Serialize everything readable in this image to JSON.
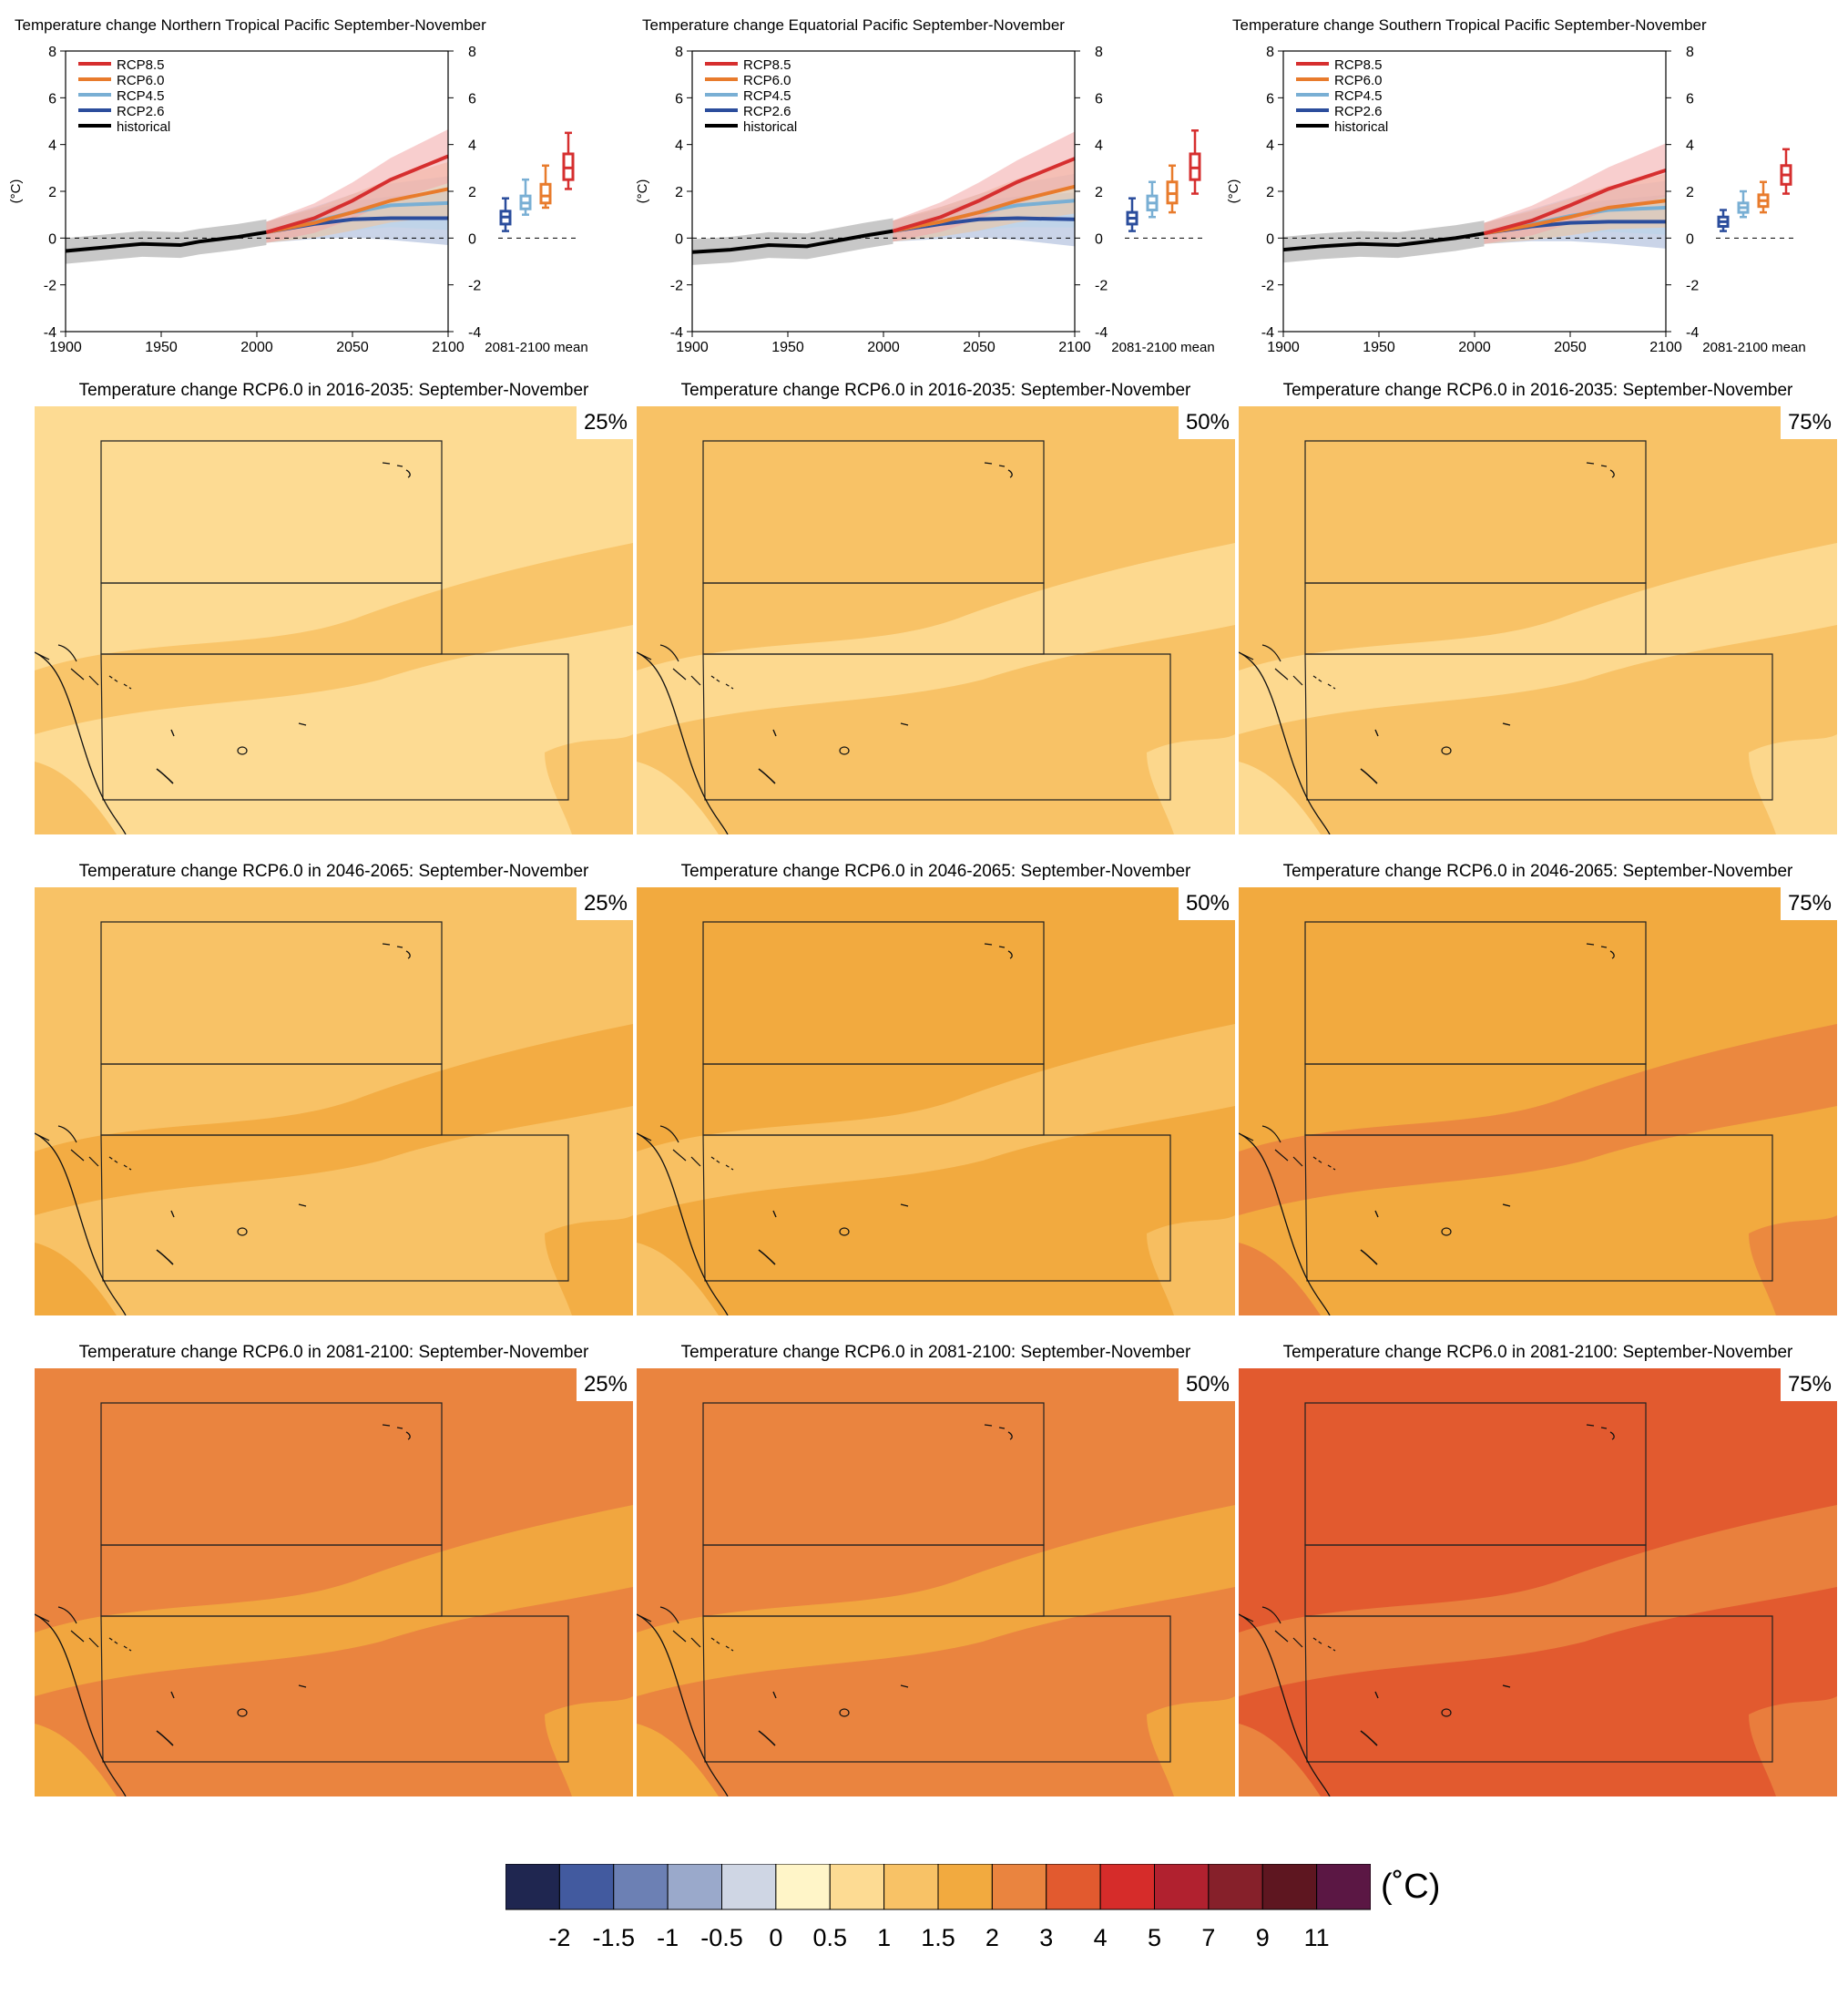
{
  "legend_colors": {
    "RCP8.5": "#d62f2f",
    "RCP6.0": "#e87b2c",
    "RCP4.5": "#79afd4",
    "RCP2.6": "#2b4d9c",
    "historical": "#000000"
  },
  "chart_data": [
    {
      "type": "line",
      "title": "Temperature change Northern Tropical Pacific September-November",
      "ylabel": "(°C)",
      "ylim": [
        -4,
        8
      ],
      "xlim": [
        1900,
        2100
      ],
      "x_ticks": [
        "1900",
        "1950",
        "2000",
        "2050",
        "2100"
      ],
      "y_ticks": [
        "-4",
        "-2",
        "0",
        "2",
        "4",
        "6",
        "8"
      ],
      "box_label": "2081-2100 mean",
      "series": [
        {
          "name": "historical",
          "x": [
            1900,
            1920,
            1940,
            1960,
            1970,
            1980,
            1990,
            2005
          ],
          "y": [
            -0.55,
            -0.4,
            -0.25,
            -0.3,
            -0.15,
            -0.05,
            0.05,
            0.25
          ]
        },
        {
          "name": "RCP2.6",
          "x": [
            2005,
            2030,
            2050,
            2070,
            2100
          ],
          "y": [
            0.25,
            0.6,
            0.8,
            0.85,
            0.85
          ]
        },
        {
          "name": "RCP4.5",
          "x": [
            2005,
            2030,
            2050,
            2070,
            2100
          ],
          "y": [
            0.25,
            0.7,
            1.1,
            1.4,
            1.5
          ]
        },
        {
          "name": "RCP6.0",
          "x": [
            2005,
            2030,
            2050,
            2070,
            2100
          ],
          "y": [
            0.25,
            0.65,
            1.1,
            1.6,
            2.1
          ]
        },
        {
          "name": "RCP8.5",
          "x": [
            2005,
            2030,
            2050,
            2070,
            2100
          ],
          "y": [
            0.25,
            0.85,
            1.6,
            2.5,
            3.5
          ]
        }
      ],
      "boxes": [
        {
          "name": "RCP2.6",
          "min": 0.3,
          "q1": 0.6,
          "median": 0.9,
          "q3": 1.15,
          "max": 1.7
        },
        {
          "name": "RCP4.5",
          "min": 1.0,
          "q1": 1.25,
          "median": 1.5,
          "q3": 1.8,
          "max": 2.5
        },
        {
          "name": "RCP6.0",
          "min": 1.3,
          "q1": 1.5,
          "median": 1.8,
          "q3": 2.3,
          "max": 3.1
        },
        {
          "name": "RCP8.5",
          "min": 2.1,
          "q1": 2.5,
          "median": 3.0,
          "q3": 3.6,
          "max": 4.5
        }
      ]
    },
    {
      "type": "line",
      "title": "Temperature change Equatorial Pacific September-November",
      "ylabel": "(°C)",
      "ylim": [
        -4,
        8
      ],
      "xlim": [
        1900,
        2100
      ],
      "x_ticks": [
        "1900",
        "1950",
        "2000",
        "2050",
        "2100"
      ],
      "y_ticks": [
        "-4",
        "-2",
        "0",
        "2",
        "4",
        "6",
        "8"
      ],
      "box_label": "2081-2100 mean",
      "series": [
        {
          "name": "historical",
          "x": [
            1900,
            1920,
            1940,
            1960,
            1970,
            1980,
            1990,
            2005
          ],
          "y": [
            -0.6,
            -0.5,
            -0.3,
            -0.35,
            -0.2,
            -0.05,
            0.1,
            0.3
          ]
        },
        {
          "name": "RCP2.6",
          "x": [
            2005,
            2030,
            2050,
            2070,
            2100
          ],
          "y": [
            0.3,
            0.6,
            0.8,
            0.85,
            0.8
          ]
        },
        {
          "name": "RCP4.5",
          "x": [
            2005,
            2030,
            2050,
            2070,
            2100
          ],
          "y": [
            0.3,
            0.7,
            1.1,
            1.4,
            1.6
          ]
        },
        {
          "name": "RCP6.0",
          "x": [
            2005,
            2030,
            2050,
            2070,
            2100
          ],
          "y": [
            0.3,
            0.7,
            1.1,
            1.6,
            2.2
          ]
        },
        {
          "name": "RCP8.5",
          "x": [
            2005,
            2030,
            2050,
            2070,
            2100
          ],
          "y": [
            0.3,
            0.9,
            1.6,
            2.4,
            3.4
          ]
        }
      ],
      "boxes": [
        {
          "name": "RCP2.6",
          "min": 0.3,
          "q1": 0.6,
          "median": 0.85,
          "q3": 1.1,
          "max": 1.7
        },
        {
          "name": "RCP4.5",
          "min": 0.9,
          "q1": 1.2,
          "median": 1.5,
          "q3": 1.8,
          "max": 2.4
        },
        {
          "name": "RCP6.0",
          "min": 1.1,
          "q1": 1.5,
          "median": 1.9,
          "q3": 2.4,
          "max": 3.1
        },
        {
          "name": "RCP8.5",
          "min": 1.9,
          "q1": 2.5,
          "median": 3.0,
          "q3": 3.6,
          "max": 4.6
        }
      ]
    },
    {
      "type": "line",
      "title": "Temperature change Southern Tropical Pacific September-November",
      "ylabel": "(°C)",
      "ylim": [
        -4,
        8
      ],
      "xlim": [
        1900,
        2100
      ],
      "x_ticks": [
        "1900",
        "1950",
        "2000",
        "2050",
        "2100"
      ],
      "y_ticks": [
        "-4",
        "-2",
        "0",
        "2",
        "4",
        "6",
        "8"
      ],
      "box_label": "2081-2100 mean",
      "series": [
        {
          "name": "historical",
          "x": [
            1900,
            1920,
            1940,
            1960,
            1970,
            1980,
            1990,
            2005
          ],
          "y": [
            -0.5,
            -0.35,
            -0.25,
            -0.3,
            -0.2,
            -0.1,
            0.0,
            0.2
          ]
        },
        {
          "name": "RCP2.6",
          "x": [
            2005,
            2030,
            2050,
            2070,
            2100
          ],
          "y": [
            0.2,
            0.5,
            0.65,
            0.7,
            0.7
          ]
        },
        {
          "name": "RCP4.5",
          "x": [
            2005,
            2030,
            2050,
            2070,
            2100
          ],
          "y": [
            0.2,
            0.6,
            0.95,
            1.2,
            1.3
          ]
        },
        {
          "name": "RCP6.0",
          "x": [
            2005,
            2030,
            2050,
            2070,
            2100
          ],
          "y": [
            0.2,
            0.55,
            0.9,
            1.3,
            1.6
          ]
        },
        {
          "name": "RCP8.5",
          "x": [
            2005,
            2030,
            2050,
            2070,
            2100
          ],
          "y": [
            0.2,
            0.75,
            1.4,
            2.1,
            2.9
          ]
        }
      ],
      "boxes": [
        {
          "name": "RCP2.6",
          "min": 0.3,
          "q1": 0.5,
          "median": 0.7,
          "q3": 0.9,
          "max": 1.2
        },
        {
          "name": "RCP4.5",
          "min": 0.9,
          "q1": 1.1,
          "median": 1.3,
          "q3": 1.5,
          "max": 2.0
        },
        {
          "name": "RCP6.0",
          "min": 1.1,
          "q1": 1.35,
          "median": 1.6,
          "q3": 1.85,
          "max": 2.4
        },
        {
          "name": "RCP8.5",
          "min": 1.9,
          "q1": 2.3,
          "median": 2.7,
          "q3": 3.1,
          "max": 3.8
        }
      ]
    },
    {
      "type": "heatmap",
      "colorbar_labels": [
        "-2",
        "-1.5",
        "-1",
        "-0.5",
        "0",
        "0.5",
        "1",
        "1.5",
        "2",
        "3",
        "4",
        "5",
        "7",
        "9",
        "11"
      ],
      "colorbar_colors": [
        "#1f2650",
        "#425a9f",
        "#6c80b4",
        "#9aa9cb",
        "#cfd6e4",
        "#fff5c8",
        "#fddb93",
        "#f8c266",
        "#f2aa3f",
        "#ea843f",
        "#e25a2f",
        "#d62c2a",
        "#b1212f",
        "#86202a",
        "#5e1620",
        "#5b1744"
      ],
      "unit": "(˚C)",
      "panels": [
        {
          "title": "Temperature change RCP6.0 in 2016-2035: September-November",
          "percentile": "25%",
          "base_level": 0.5,
          "warm_level": 1.0
        },
        {
          "title": "Temperature change RCP6.0 in 2016-2035: September-November",
          "percentile": "50%",
          "base_level": 1.0,
          "warm_level": 0.5
        },
        {
          "title": "Temperature change RCP6.0 in 2016-2035: September-November",
          "percentile": "75%",
          "base_level": 1.0,
          "warm_level": 0.5
        },
        {
          "title": "Temperature change RCP6.0 in 2046-2065: September-November",
          "percentile": "25%",
          "base_level": 1.0,
          "warm_level": 1.5
        },
        {
          "title": "Temperature change RCP6.0 in 2046-2065: September-November",
          "percentile": "50%",
          "base_level": 1.5,
          "warm_level": 1.0
        },
        {
          "title": "Temperature change RCP6.0 in 2046-2065: September-November",
          "percentile": "75%",
          "base_level": 1.5,
          "warm_level": 2.0
        },
        {
          "title": "Temperature change RCP6.0 in 2081-2100: September-November",
          "percentile": "25%",
          "base_level": 2.0,
          "warm_level": 1.5
        },
        {
          "title": "Temperature change RCP6.0 in 2081-2100: September-November",
          "percentile": "50%",
          "base_level": 2.0,
          "warm_level": 1.5
        },
        {
          "title": "Temperature change RCP6.0 in 2081-2100: September-November",
          "percentile": "75%",
          "base_level": 3.0,
          "warm_level": 2.0
        }
      ]
    }
  ]
}
